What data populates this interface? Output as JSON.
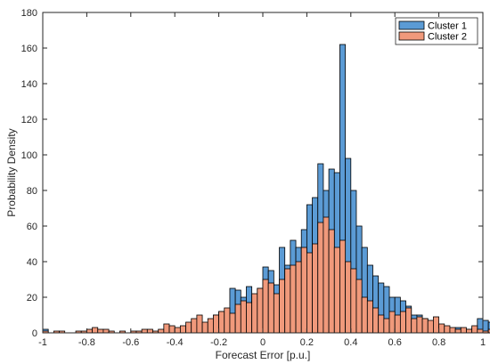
{
  "chart_data": {
    "type": "bar",
    "title": "",
    "xlabel": "Forecast Error [p.u.]",
    "ylabel": "Probability Density",
    "xlim": [
      -1,
      1
    ],
    "ylim": [
      0,
      180
    ],
    "bin_width": 0.025,
    "bin_start": -1.0,
    "xticks": [
      -1,
      -0.8,
      -0.6,
      -0.4,
      -0.2,
      0,
      0.2,
      0.4,
      0.6,
      0.8,
      1
    ],
    "xtick_labels": [
      "-1",
      "-0.8",
      "-0.6",
      "-0.4",
      "-0.2",
      "0",
      "0.2",
      "0.4",
      "0.6",
      "0.8",
      "1"
    ],
    "yticks": [
      0,
      20,
      40,
      60,
      80,
      100,
      120,
      140,
      160,
      180
    ],
    "ytick_labels": [
      "0",
      "20",
      "40",
      "60",
      "80",
      "100",
      "120",
      "140",
      "160",
      "180"
    ],
    "legend_position": "top-right",
    "grid": false,
    "series": [
      {
        "name": "Cluster 1",
        "color": "#5b9bd5",
        "values": [
          2,
          0,
          0,
          0,
          0,
          0,
          0,
          0,
          0,
          0,
          0,
          0,
          0,
          0,
          0,
          0,
          0,
          0,
          0,
          0,
          0,
          0,
          0,
          0,
          2,
          3,
          3,
          3,
          2,
          4,
          6,
          10,
          12,
          10,
          25,
          24,
          20,
          26,
          18,
          25,
          37,
          35,
          27,
          48,
          38,
          52,
          48,
          58,
          72,
          76,
          95,
          80,
          92,
          90,
          162,
          98,
          80,
          60,
          48,
          38,
          32,
          28,
          26,
          20,
          20,
          18,
          15,
          10,
          10,
          8,
          6,
          5,
          4,
          3,
          2,
          3,
          2,
          2,
          3,
          8,
          7,
          6,
          5,
          4,
          4,
          3,
          2,
          2,
          2,
          1
        ]
      },
      {
        "name": "Cluster 2",
        "color": "#f0997b",
        "values": [
          1,
          0,
          1,
          1,
          0,
          0,
          1,
          1,
          2,
          3,
          2,
          2,
          1,
          0,
          1,
          0,
          1,
          1,
          2,
          2,
          1,
          2,
          5,
          4,
          3,
          4,
          6,
          8,
          10,
          6,
          8,
          10,
          12,
          14,
          11,
          16,
          18,
          17,
          22,
          25,
          30,
          28,
          22,
          30,
          36,
          38,
          40,
          48,
          45,
          50,
          62,
          65,
          58,
          48,
          52,
          40,
          36,
          30,
          20,
          18,
          14,
          10,
          8,
          12,
          10,
          12,
          14,
          8,
          9,
          8,
          7,
          9,
          5,
          4,
          3,
          2,
          3,
          2,
          4,
          2,
          1,
          2,
          2,
          1,
          2,
          1,
          1,
          1,
          1,
          1
        ]
      }
    ]
  }
}
